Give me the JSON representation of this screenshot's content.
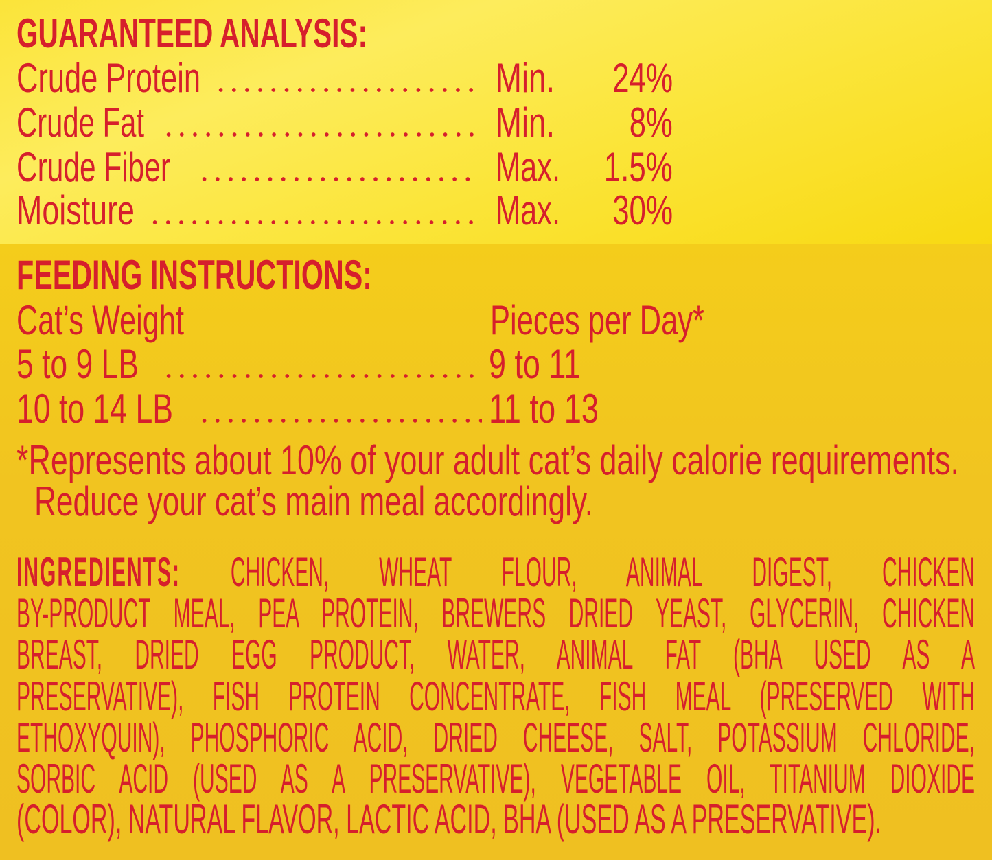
{
  "colors": {
    "text": "#d61f2c",
    "top_background": "#fbe43a",
    "bottom_background": "#f0c11f"
  },
  "analysis": {
    "title": "GUARANTEED ANALYSIS:",
    "rows": [
      {
        "label": "Crude Protein",
        "qualifier": "Min.",
        "value": "24%"
      },
      {
        "label": "Crude Fat",
        "qualifier": "Min.",
        "value": "8%"
      },
      {
        "label": "Crude Fiber",
        "qualifier": "Max.",
        "value": "1.5%"
      },
      {
        "label": "Moisture",
        "qualifier": "Max.",
        "value": "30%"
      }
    ]
  },
  "feeding": {
    "title": "FEEDING INSTRUCTIONS:",
    "col_weight": "Cat’s Weight",
    "col_pieces": "Pieces per Day*",
    "rows": [
      {
        "weight": "5 to 9 LB",
        "pieces": "9 to 11"
      },
      {
        "weight": "10 to 14 LB",
        "pieces": "11 to 13"
      }
    ],
    "footnote_line1": "*Represents about 10% of your adult cat’s daily calorie requirements.",
    "footnote_line2": "Reduce your cat’s main meal accordingly."
  },
  "ingredients": {
    "label": "INGREDIENTS:",
    "lines": [
      "CHICKEN, WHEAT FLOUR, ANIMAL DIGEST, CHICKEN",
      "BY-PRODUCT MEAL, PEA PROTEIN, BREWERS DRIED YEAST, GLYCERIN, CHICKEN",
      "BREAST, DRIED EGG PRODUCT, WATER, ANIMAL FAT (BHA USED AS A",
      "PRESERVATIVE), FISH PROTEIN CONCENTRATE, FISH MEAL (PRESERVED WITH",
      "ETHOXYQUIN), PHOSPHORIC ACID, DRIED CHEESE, SALT, POTASSIUM CHLORIDE,",
      "SORBIC ACID (USED AS A PRESERVATIVE), VEGETABLE OIL, TITANIUM DIOXIDE",
      "(COLOR), NATURAL FLAVOR, LACTIC ACID, BHA (USED AS A PRESERVATIVE)."
    ]
  }
}
